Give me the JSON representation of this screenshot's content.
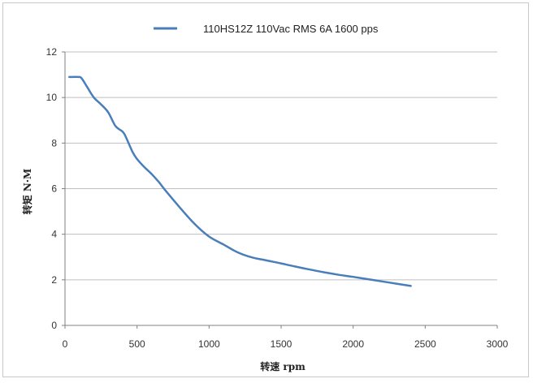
{
  "chart_data": {
    "type": "line",
    "title": "",
    "xlabel": "转速 rpm",
    "ylabel": "转矩 N·M",
    "xlim": [
      0,
      3000
    ],
    "ylim": [
      0,
      12
    ],
    "xticks": [
      0,
      500,
      1000,
      1500,
      2000,
      2500,
      3000
    ],
    "yticks": [
      0,
      2,
      4,
      6,
      8,
      10,
      12
    ],
    "grid": true,
    "legend_position": "top",
    "series": [
      {
        "name": "110HS12Z 110Vac RMS 6A 1600 pps",
        "color": "#4a7ebb",
        "x": [
          30,
          100,
          120,
          150,
          200,
          250,
          300,
          350,
          400,
          420,
          470,
          500,
          550,
          600,
          650,
          700,
          800,
          900,
          1000,
          1100,
          1200,
          1300,
          1400,
          1500,
          1600,
          1700,
          1800,
          1900,
          2000,
          2100,
          2200,
          2300,
          2400
        ],
        "y": [
          10.9,
          10.9,
          10.8,
          10.5,
          10.0,
          9.7,
          9.35,
          8.75,
          8.5,
          8.3,
          7.6,
          7.3,
          6.95,
          6.65,
          6.3,
          5.9,
          5.15,
          4.45,
          3.9,
          3.55,
          3.2,
          2.98,
          2.85,
          2.72,
          2.58,
          2.45,
          2.33,
          2.22,
          2.13,
          2.03,
          1.93,
          1.83,
          1.73
        ]
      }
    ]
  }
}
